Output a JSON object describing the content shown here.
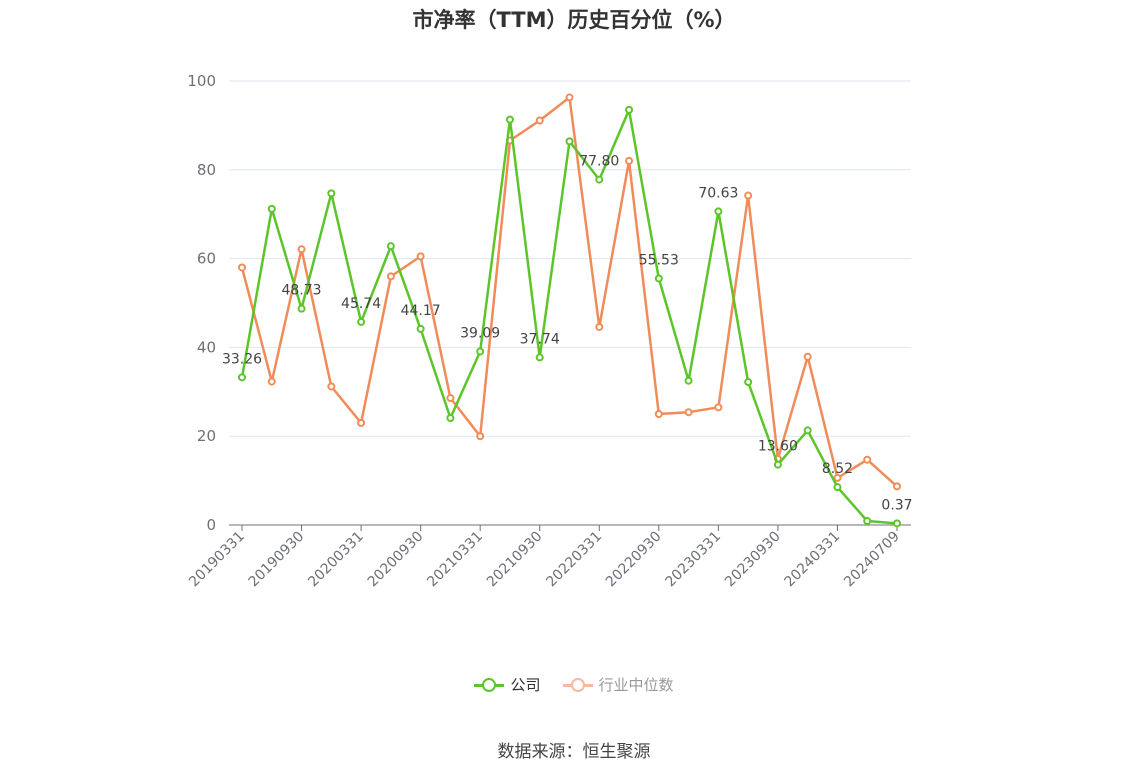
{
  "title": "市净率（TTM）历史百分位（%）",
  "source": "数据来源：恒生聚源",
  "legend": {
    "company": "公司",
    "industry": "行业中位数"
  },
  "colors": {
    "company": "#5cc52a",
    "industry": "#f08c5a",
    "industry_legend": "#f8b9a0",
    "legend_muted_text": "#999999",
    "grid": "#e0e6f1",
    "axis": "#6e7079"
  },
  "chart_data": {
    "type": "line",
    "title": "市净率（TTM）历史百分位（%）",
    "ylim": [
      0,
      100
    ],
    "y_ticks": [
      "0",
      "20",
      "40",
      "60",
      "80",
      "100"
    ],
    "x_tick_labels": [
      "20190331",
      "20190930",
      "20200331",
      "20200930",
      "20210331",
      "20210930",
      "20220331",
      "20220930",
      "20230331",
      "20230930",
      "20240331",
      "20240709"
    ],
    "grid": true,
    "legend_position": "bottom-center",
    "x": [
      "20190331",
      "20190630",
      "20190930",
      "20191231",
      "20200331",
      "20200630",
      "20200930",
      "20201231",
      "20210331",
      "20210630",
      "20210930",
      "20211231",
      "20220331",
      "20220630",
      "20220930",
      "20221231",
      "20230331",
      "20230630",
      "20230930",
      "20231231",
      "20240331",
      "20240630",
      "20240709"
    ],
    "series": [
      {
        "name": "公司",
        "values": [
          33.26,
          71.2,
          48.73,
          74.7,
          45.74,
          62.8,
          44.17,
          24.1,
          39.09,
          91.3,
          37.74,
          86.4,
          77.8,
          93.5,
          55.53,
          32.5,
          70.63,
          32.2,
          13.6,
          21.3,
          8.52,
          0.9,
          0.37
        ],
        "labels": [
          "33.26",
          "",
          "48.73",
          "",
          "45.74",
          "",
          "44.17",
          "",
          "39.09",
          "",
          "37.74",
          "",
          "77.80",
          "",
          "55.53",
          "",
          "70.63",
          "",
          "13.60",
          "",
          "8.52",
          "",
          "0.37"
        ]
      },
      {
        "name": "行业中位数",
        "values": [
          58.0,
          32.3,
          62.1,
          31.2,
          23.0,
          56.0,
          60.5,
          28.6,
          20.0,
          86.6,
          91.1,
          96.3,
          44.6,
          82.0,
          25.0,
          25.4,
          26.5,
          74.2,
          14.9,
          37.9,
          10.6,
          14.7,
          8.7
        ]
      }
    ]
  }
}
